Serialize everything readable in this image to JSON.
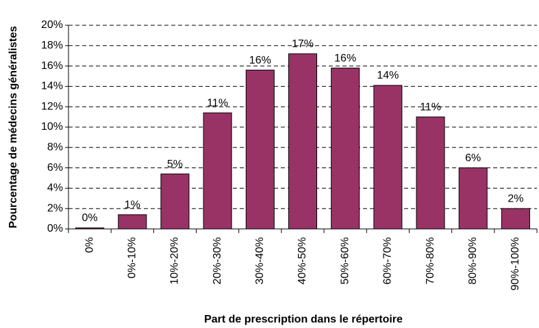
{
  "chart_data": {
    "type": "bar",
    "x_label": "Part de prescription dans le répertoire",
    "y_label": "Pourcentage de médecins généralistes",
    "categories": [
      "0%",
      "0%-10%",
      "10%-20%",
      "20%-30%",
      "30%-40%",
      "40%-50%",
      "50%-60%",
      "60%-70%",
      "70%-80%",
      "80%-90%",
      "90%-100%"
    ],
    "values": [
      0.1,
      1.4,
      5.4,
      11.4,
      15.6,
      17.2,
      15.8,
      14.1,
      11.0,
      6.0,
      2.0
    ],
    "value_labels": [
      "0%",
      "1%",
      "5%",
      "11%",
      "16%",
      "17%",
      "16%",
      "14%",
      "11%",
      "6%",
      "2%"
    ],
    "color": "#993366",
    "ylim": [
      0,
      20
    ],
    "yticks": [
      {
        "value": 0,
        "label": "0%"
      },
      {
        "value": 2,
        "label": "2%"
      },
      {
        "value": 4,
        "label": "4%"
      },
      {
        "value": 6,
        "label": "6%"
      },
      {
        "value": 8,
        "label": "8%"
      },
      {
        "value": 10,
        "label": "10%"
      },
      {
        "value": 12,
        "label": "12%"
      },
      {
        "value": 14,
        "label": "14%"
      },
      {
        "value": 16,
        "label": "16%"
      },
      {
        "value": 18,
        "label": "18%"
      },
      {
        "value": 20,
        "label": "20%"
      }
    ],
    "grid": true
  }
}
